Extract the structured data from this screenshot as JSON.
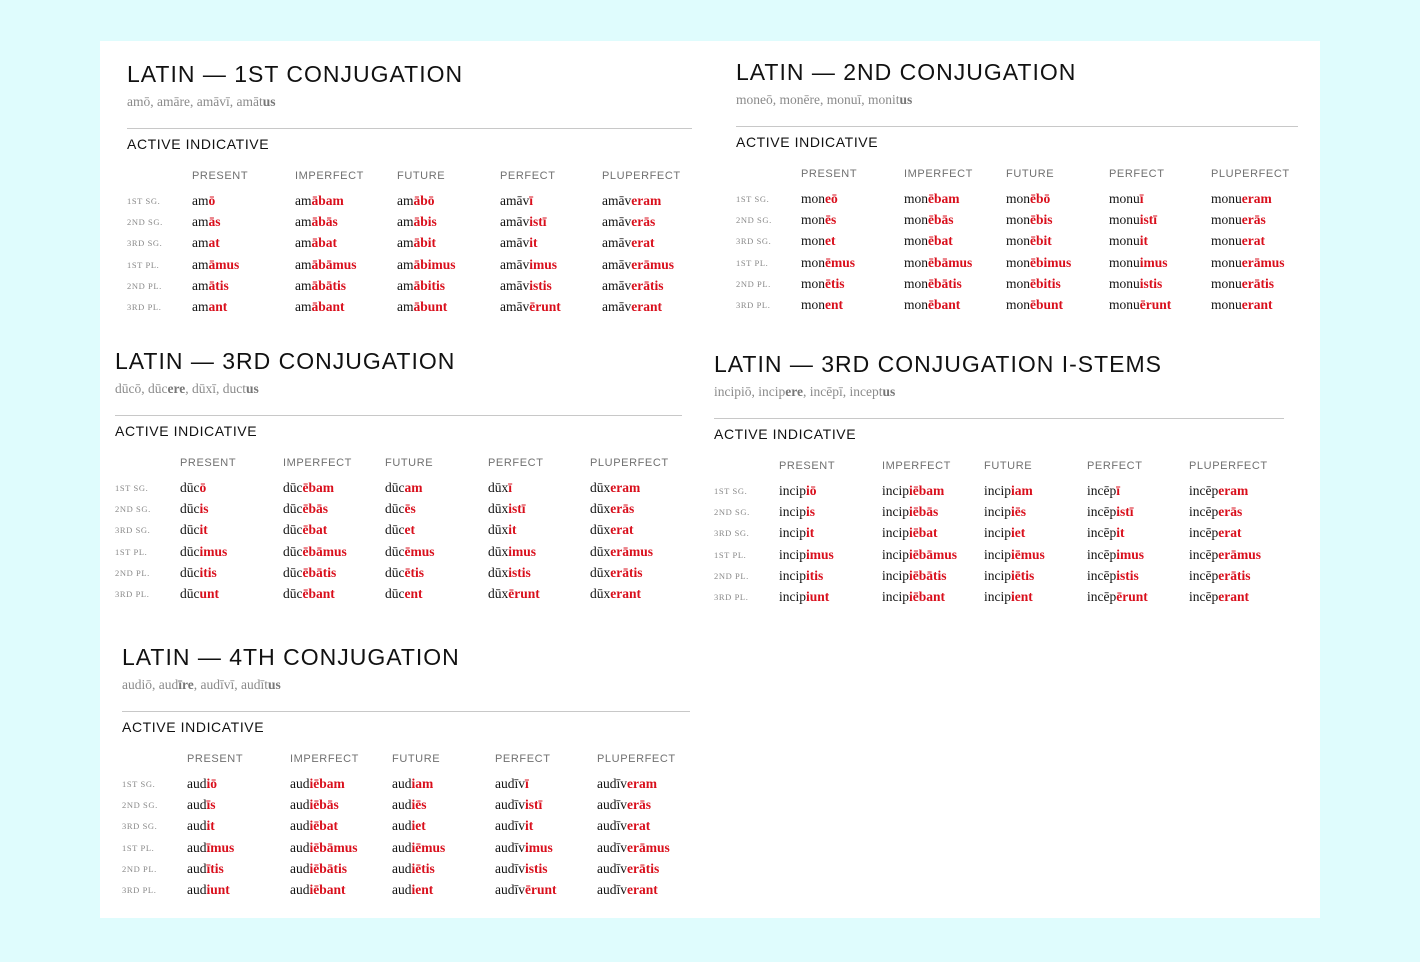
{
  "section_label": "ACTIVE INDICATIVE",
  "tense_headers": [
    "PRESENT",
    "IMPERFECT",
    "FUTURE",
    "PERFECT",
    "PLUPERFECT"
  ],
  "person_labels": [
    "1ST SG.",
    "2ND SG.",
    "3RD SG.",
    "1ST PL.",
    "2ND PL.",
    "3RD PL."
  ],
  "colors": {
    "background": "#dffcfd",
    "sheet": "#ffffff",
    "ending": "#d90f1c",
    "rule": "#c8c8c8"
  },
  "conjugations": [
    {
      "title": "LATIN — 1ST CONJUGATION",
      "principal_parts": [
        [
          "amō",
          ""
        ],
        [
          "amāre",
          ""
        ],
        [
          "amāvī",
          ""
        ],
        [
          "amāt",
          "us"
        ]
      ],
      "rows": [
        [
          [
            "am",
            "ō"
          ],
          [
            "am",
            "ābam"
          ],
          [
            "am",
            "ābō"
          ],
          [
            "amāv",
            "ī"
          ],
          [
            "amāv",
            "eram"
          ]
        ],
        [
          [
            "am",
            "ās"
          ],
          [
            "am",
            "ābās"
          ],
          [
            "am",
            "ābis"
          ],
          [
            "amāv",
            "istī"
          ],
          [
            "amāv",
            "erās"
          ]
        ],
        [
          [
            "am",
            "at"
          ],
          [
            "am",
            "ābat"
          ],
          [
            "am",
            "ābit"
          ],
          [
            "amāv",
            "it"
          ],
          [
            "amāv",
            "erat"
          ]
        ],
        [
          [
            "am",
            "āmus"
          ],
          [
            "am",
            "ābāmus"
          ],
          [
            "am",
            "ābimus"
          ],
          [
            "amāv",
            "imus"
          ],
          [
            "amāv",
            "erāmus"
          ]
        ],
        [
          [
            "am",
            "ātis"
          ],
          [
            "am",
            "ābātis"
          ],
          [
            "am",
            "ābitis"
          ],
          [
            "amāv",
            "istis"
          ],
          [
            "amāv",
            "erātis"
          ]
        ],
        [
          [
            "am",
            "ant"
          ],
          [
            "am",
            "ābant"
          ],
          [
            "am",
            "ābunt"
          ],
          [
            "amāv",
            "ērunt"
          ],
          [
            "amāv",
            "erant"
          ]
        ]
      ]
    },
    {
      "title": "LATIN — 2ND CONJUGATION",
      "principal_parts": [
        [
          "moneō",
          ""
        ],
        [
          "monēre",
          ""
        ],
        [
          "monuī",
          ""
        ],
        [
          "monit",
          "us"
        ]
      ],
      "rows": [
        [
          [
            "mon",
            "eō"
          ],
          [
            "mon",
            "ēbam"
          ],
          [
            "mon",
            "ēbō"
          ],
          [
            "monu",
            "ī"
          ],
          [
            "monu",
            "eram"
          ]
        ],
        [
          [
            "mon",
            "ēs"
          ],
          [
            "mon",
            "ēbās"
          ],
          [
            "mon",
            "ēbis"
          ],
          [
            "monu",
            "istī"
          ],
          [
            "monu",
            "erās"
          ]
        ],
        [
          [
            "mon",
            "et"
          ],
          [
            "mon",
            "ēbat"
          ],
          [
            "mon",
            "ēbit"
          ],
          [
            "monu",
            "it"
          ],
          [
            "monu",
            "erat"
          ]
        ],
        [
          [
            "mon",
            "ēmus"
          ],
          [
            "mon",
            "ēbāmus"
          ],
          [
            "mon",
            "ēbimus"
          ],
          [
            "monu",
            "imus"
          ],
          [
            "monu",
            "erāmus"
          ]
        ],
        [
          [
            "mon",
            "ētis"
          ],
          [
            "mon",
            "ēbātis"
          ],
          [
            "mon",
            "ēbitis"
          ],
          [
            "monu",
            "istis"
          ],
          [
            "monu",
            "erātis"
          ]
        ],
        [
          [
            "mon",
            "ent"
          ],
          [
            "mon",
            "ēbant"
          ],
          [
            "mon",
            "ēbunt"
          ],
          [
            "monu",
            "ērunt"
          ],
          [
            "monu",
            "erant"
          ]
        ]
      ]
    },
    {
      "title": "LATIN — 3RD CONJUGATION",
      "principal_parts": [
        [
          "dūcō",
          ""
        ],
        [
          "dūc",
          "ere"
        ],
        [
          "dūxī",
          ""
        ],
        [
          "duct",
          "us"
        ]
      ],
      "rows": [
        [
          [
            "dūc",
            "ō"
          ],
          [
            "dūc",
            "ēbam"
          ],
          [
            "dūc",
            "am"
          ],
          [
            "dūx",
            "ī"
          ],
          [
            "dūx",
            "eram"
          ]
        ],
        [
          [
            "dūc",
            "is"
          ],
          [
            "dūc",
            "ēbās"
          ],
          [
            "dūc",
            "ēs"
          ],
          [
            "dūx",
            "istī"
          ],
          [
            "dūx",
            "erās"
          ]
        ],
        [
          [
            "dūc",
            "it"
          ],
          [
            "dūc",
            "ēbat"
          ],
          [
            "dūc",
            "et"
          ],
          [
            "dūx",
            "it"
          ],
          [
            "dūx",
            "erat"
          ]
        ],
        [
          [
            "dūc",
            "imus"
          ],
          [
            "dūc",
            "ēbāmus"
          ],
          [
            "dūc",
            "ēmus"
          ],
          [
            "dūx",
            "imus"
          ],
          [
            "dūx",
            "erāmus"
          ]
        ],
        [
          [
            "dūc",
            "itis"
          ],
          [
            "dūc",
            "ēbātis"
          ],
          [
            "dūc",
            "ētis"
          ],
          [
            "dūx",
            "istis"
          ],
          [
            "dūx",
            "erātis"
          ]
        ],
        [
          [
            "dūc",
            "unt"
          ],
          [
            "dūc",
            "ēbant"
          ],
          [
            "dūc",
            "ent"
          ],
          [
            "dūx",
            "ērunt"
          ],
          [
            "dūx",
            "erant"
          ]
        ]
      ]
    },
    {
      "title": "LATIN — 3RD CONJUGATION I-STEMS",
      "principal_parts": [
        [
          "incipiō",
          ""
        ],
        [
          "incip",
          "ere"
        ],
        [
          "incēpī",
          ""
        ],
        [
          "incept",
          "us"
        ]
      ],
      "rows": [
        [
          [
            "incip",
            "iō"
          ],
          [
            "incip",
            "iēbam"
          ],
          [
            "incip",
            "iam"
          ],
          [
            "incēp",
            "ī"
          ],
          [
            "incēp",
            "eram"
          ]
        ],
        [
          [
            "incip",
            "is"
          ],
          [
            "incip",
            "iēbās"
          ],
          [
            "incip",
            "iēs"
          ],
          [
            "incēp",
            "istī"
          ],
          [
            "incēp",
            "erās"
          ]
        ],
        [
          [
            "incip",
            "it"
          ],
          [
            "incip",
            "iēbat"
          ],
          [
            "incip",
            "iet"
          ],
          [
            "incēp",
            "it"
          ],
          [
            "incēp",
            "erat"
          ]
        ],
        [
          [
            "incip",
            "imus"
          ],
          [
            "incip",
            "iēbāmus"
          ],
          [
            "incip",
            "iēmus"
          ],
          [
            "incēp",
            "imus"
          ],
          [
            "incēp",
            "erāmus"
          ]
        ],
        [
          [
            "incip",
            "itis"
          ],
          [
            "incip",
            "iēbātis"
          ],
          [
            "incip",
            "iētis"
          ],
          [
            "incēp",
            "istis"
          ],
          [
            "incēp",
            "erātis"
          ]
        ],
        [
          [
            "incip",
            "iunt"
          ],
          [
            "incip",
            "iēbant"
          ],
          [
            "incip",
            "ient"
          ],
          [
            "incēp",
            "ērunt"
          ],
          [
            "incēp",
            "erant"
          ]
        ]
      ]
    },
    {
      "title": "LATIN — 4TH CONJUGATION",
      "principal_parts": [
        [
          "audiō",
          ""
        ],
        [
          "aud",
          "īre"
        ],
        [
          "audīvī",
          ""
        ],
        [
          "audīt",
          "us"
        ]
      ],
      "rows": [
        [
          [
            "aud",
            "iō"
          ],
          [
            "aud",
            "iēbam"
          ],
          [
            "aud",
            "iam"
          ],
          [
            "audīv",
            "ī"
          ],
          [
            "audīv",
            "eram"
          ]
        ],
        [
          [
            "aud",
            "īs"
          ],
          [
            "aud",
            "iēbās"
          ],
          [
            "aud",
            "iēs"
          ],
          [
            "audīv",
            "istī"
          ],
          [
            "audīv",
            "erās"
          ]
        ],
        [
          [
            "aud",
            "it"
          ],
          [
            "aud",
            "iēbat"
          ],
          [
            "aud",
            "iet"
          ],
          [
            "audīv",
            "it"
          ],
          [
            "audīv",
            "erat"
          ]
        ],
        [
          [
            "aud",
            "īmus"
          ],
          [
            "aud",
            "iēbāmus"
          ],
          [
            "aud",
            "iēmus"
          ],
          [
            "audīv",
            "imus"
          ],
          [
            "audīv",
            "erāmus"
          ]
        ],
        [
          [
            "aud",
            "ītis"
          ],
          [
            "aud",
            "iēbātis"
          ],
          [
            "aud",
            "iētis"
          ],
          [
            "audīv",
            "istis"
          ],
          [
            "audīv",
            "erātis"
          ]
        ],
        [
          [
            "aud",
            "iunt"
          ],
          [
            "aud",
            "iēbant"
          ],
          [
            "aud",
            "ient"
          ],
          [
            "audīv",
            "ērunt"
          ],
          [
            "audīv",
            "erant"
          ]
        ]
      ]
    }
  ]
}
